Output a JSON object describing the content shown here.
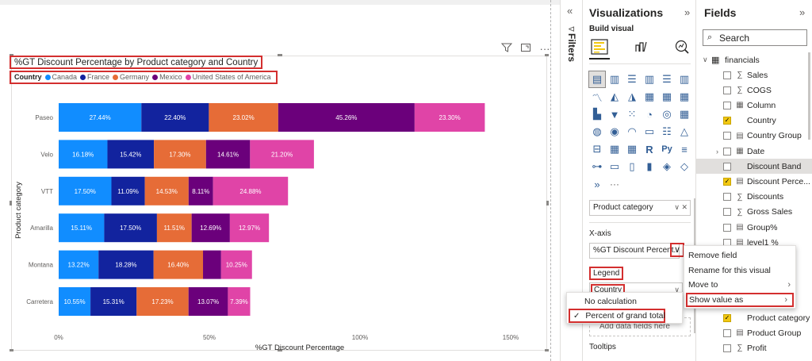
{
  "canvas": {
    "visual_icons": [
      "filter-icon",
      "focus-mode-icon",
      "more-options-icon"
    ]
  },
  "chart_data": {
    "type": "bar",
    "orientation": "horizontal",
    "stacked": true,
    "title": "%GT Discount Percentage by Product category and Country",
    "xlabel": "%GT Discount Percentage",
    "ylabel": "Product category",
    "legend_title": "Country",
    "legend_position": "top-left",
    "categories": [
      "Paseo",
      "Velo",
      "VTT",
      "Amarilla",
      "Montana",
      "Carretera"
    ],
    "x_ticks": [
      "0%",
      "50%",
      "100%",
      "150%"
    ],
    "xlim": [
      0,
      150
    ],
    "series": [
      {
        "name": "Canada",
        "color": "#118dff",
        "values": [
          27.44,
          16.18,
          17.5,
          15.11,
          13.22,
          10.55
        ],
        "labels": [
          "27.44%",
          "16.18%",
          "17.50%",
          "15.11%",
          "13.22%",
          "10.55%"
        ]
      },
      {
        "name": "France",
        "color": "#12239e",
        "values": [
          22.4,
          15.42,
          11.09,
          17.5,
          18.28,
          15.31
        ],
        "labels": [
          "22.40%",
          "15.42%",
          "11.09%",
          "17.50%",
          "18.28%",
          "15.31%"
        ]
      },
      {
        "name": "Germany",
        "color": "#e66c37",
        "values": [
          23.02,
          17.3,
          14.53,
          11.51,
          16.4,
          17.23
        ],
        "labels": [
          "23.02%",
          "17.30%",
          "14.53%",
          "11.51%",
          "16.40%",
          "17.23%"
        ]
      },
      {
        "name": "Mexico",
        "color": "#6b007b",
        "values": [
          45.26,
          14.61,
          8.11,
          12.69,
          6.0,
          13.07
        ],
        "labels": [
          "45.26%",
          "14.61%",
          "8.11%",
          "12.69%",
          "",
          "13.07%"
        ]
      },
      {
        "name": "United States of America",
        "color": "#e044a7",
        "values": [
          23.3,
          21.2,
          24.88,
          12.97,
          10.25,
          7.39
        ],
        "labels": [
          "23.30%",
          "21.20%",
          "24.88%",
          "12.97%",
          "10.25%",
          "7.39%"
        ]
      }
    ]
  },
  "filters": {
    "label": "Filters"
  },
  "viz_pane": {
    "title": "Visualizations",
    "build_visual": "Build visual",
    "more": "···",
    "y_axis_field": "Product category",
    "x_axis_label": "X-axis",
    "x_axis_field": "%GT Discount Percent...",
    "legend_label": "Legend",
    "legend_field": "Country",
    "add_data": "Add data fields here",
    "tooltips_label": "Tooltips"
  },
  "fields_pane": {
    "title": "Fields",
    "search_placeholder": "Search",
    "table": "financials",
    "fields": [
      {
        "name": "Sales",
        "icon": "∑",
        "checked": false
      },
      {
        "name": "COGS",
        "icon": "∑",
        "checked": false
      },
      {
        "name": "Column",
        "icon": "▦",
        "checked": false
      },
      {
        "name": "Country",
        "icon": "",
        "checked": true
      },
      {
        "name": "Country Group",
        "icon": "▤",
        "checked": false
      },
      {
        "name": "Date",
        "icon": "▦",
        "checked": false,
        "expandable": true
      },
      {
        "name": "Discount Band",
        "icon": "",
        "checked": false,
        "highlighted": true
      },
      {
        "name": "Discount Perce...",
        "icon": "▤",
        "checked": true
      },
      {
        "name": "Discounts",
        "icon": "∑",
        "checked": false
      },
      {
        "name": "Gross Sales",
        "icon": "∑",
        "checked": false
      },
      {
        "name": "Group%",
        "icon": "▤",
        "checked": false
      },
      {
        "name": "level1 %",
        "icon": "▤",
        "checked": false
      }
    ],
    "fields_bottom": [
      {
        "name": "Product category",
        "icon": "",
        "checked": true
      },
      {
        "name": "Product Group",
        "icon": "▤",
        "checked": false
      },
      {
        "name": "Profit",
        "icon": "∑",
        "checked": false
      }
    ]
  },
  "context_menu": {
    "items": [
      "Remove field",
      "Rename for this visual",
      "Move to",
      "Show value as"
    ]
  },
  "submenu": {
    "items": [
      "No calculation",
      "Percent of grand total"
    ],
    "checked_index": 1
  }
}
